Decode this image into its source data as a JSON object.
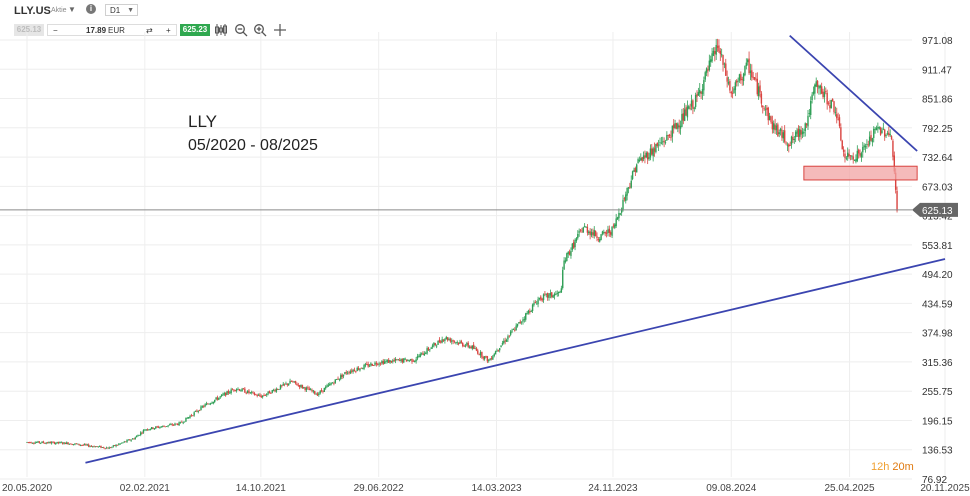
{
  "toolbar": {
    "ticker": "LLY.US",
    "ticker_type": "Aktie",
    "info_glyph": "i",
    "timeframe": "D1",
    "bid": "625.13",
    "qty_minus": "−",
    "qty_value": "17.89",
    "qty_currency": "EUR",
    "qty_plus": "+",
    "ask": "625.23",
    "icons": [
      "dropdown-caret-icon",
      "info-icon",
      "swap-icon",
      "candles-icon",
      "zoom-out-icon",
      "zoom-in-icon",
      "crosshair-icon"
    ]
  },
  "annotation": {
    "title": "LLY",
    "period": "05/2020 - 08/2025"
  },
  "countdown": {
    "hours": "12h",
    "minutes": "20m"
  },
  "colors": {
    "up": "#2e9e55",
    "down": "#d9433f",
    "trendline": "#3b45b0",
    "zone_fill": "#f2a3a3",
    "zone_stroke": "#d9433f",
    "price_tag": "#666666",
    "countdown": "#f0a030"
  },
  "chart_data": {
    "type": "candlestick",
    "y_ticks": [
      "971.08",
      "911.47",
      "851.86",
      "792.25",
      "732.64",
      "673.03",
      "613.42",
      "553.81",
      "494.20",
      "434.59",
      "374.98",
      "315.36",
      "255.75",
      "196.15",
      "136.53",
      "76.92"
    ],
    "x_ticks": [
      "20.05.2020",
      "02.02.2021",
      "14.10.2021",
      "29.06.2022",
      "14.03.2023",
      "24.11.2023",
      "09.08.2024",
      "25.04.2025",
      "20.11.2025"
    ],
    "ylim": [
      76.92,
      1000
    ],
    "current_price": "625.13",
    "close_series": [
      {
        "date": "2020-05-20",
        "close": 152
      },
      {
        "date": "2020-08-15",
        "close": 150
      },
      {
        "date": "2020-11-15",
        "close": 140
      },
      {
        "date": "2021-01-10",
        "close": 160
      },
      {
        "date": "2021-02-02",
        "close": 178
      },
      {
        "date": "2021-04-20",
        "close": 190
      },
      {
        "date": "2021-06-10",
        "close": 225
      },
      {
        "date": "2021-08-20",
        "close": 262
      },
      {
        "date": "2021-10-14",
        "close": 245
      },
      {
        "date": "2021-12-20",
        "close": 275
      },
      {
        "date": "2022-02-15",
        "close": 250
      },
      {
        "date": "2022-04-20",
        "close": 295
      },
      {
        "date": "2022-06-29",
        "close": 315
      },
      {
        "date": "2022-09-15",
        "close": 320
      },
      {
        "date": "2022-11-20",
        "close": 365
      },
      {
        "date": "2023-01-20",
        "close": 345
      },
      {
        "date": "2023-02-25",
        "close": 318
      },
      {
        "date": "2023-03-14",
        "close": 340
      },
      {
        "date": "2023-04-25",
        "close": 385
      },
      {
        "date": "2023-06-15",
        "close": 445
      },
      {
        "date": "2023-08-01",
        "close": 455
      },
      {
        "date": "2023-08-09",
        "close": 520
      },
      {
        "date": "2023-09-20",
        "close": 590
      },
      {
        "date": "2023-10-25",
        "close": 570
      },
      {
        "date": "2023-11-24",
        "close": 585
      },
      {
        "date": "2024-01-15",
        "close": 720
      },
      {
        "date": "2024-03-20",
        "close": 770
      },
      {
        "date": "2024-05-25",
        "close": 850
      },
      {
        "date": "2024-07-10",
        "close": 960
      },
      {
        "date": "2024-08-09",
        "close": 860
      },
      {
        "date": "2024-09-15",
        "close": 920
      },
      {
        "date": "2024-11-05",
        "close": 800
      },
      {
        "date": "2024-12-15",
        "close": 760
      },
      {
        "date": "2025-01-20",
        "close": 800
      },
      {
        "date": "2025-02-10",
        "close": 880
      },
      {
        "date": "2025-03-25",
        "close": 830
      },
      {
        "date": "2025-04-14",
        "close": 730
      },
      {
        "date": "2025-05-20",
        "close": 740
      },
      {
        "date": "2025-06-25",
        "close": 790
      },
      {
        "date": "2025-07-25",
        "close": 780
      },
      {
        "date": "2025-08-07",
        "close": 625
      }
    ],
    "lines": [
      {
        "name": "support-trendline",
        "from": {
          "date": "2020-09-25",
          "price": 110
        },
        "to": {
          "date": "2025-11-20",
          "price": 525
        }
      },
      {
        "name": "resistance-trendline",
        "from": {
          "date": "2024-12-15",
          "price": 980
        },
        "to": {
          "date": "2025-09-20",
          "price": 745
        }
      }
    ],
    "zone": {
      "name": "support-zone",
      "start": "2025-01-15",
      "end": "2025-09-20",
      "low": 686,
      "high": 714
    }
  }
}
